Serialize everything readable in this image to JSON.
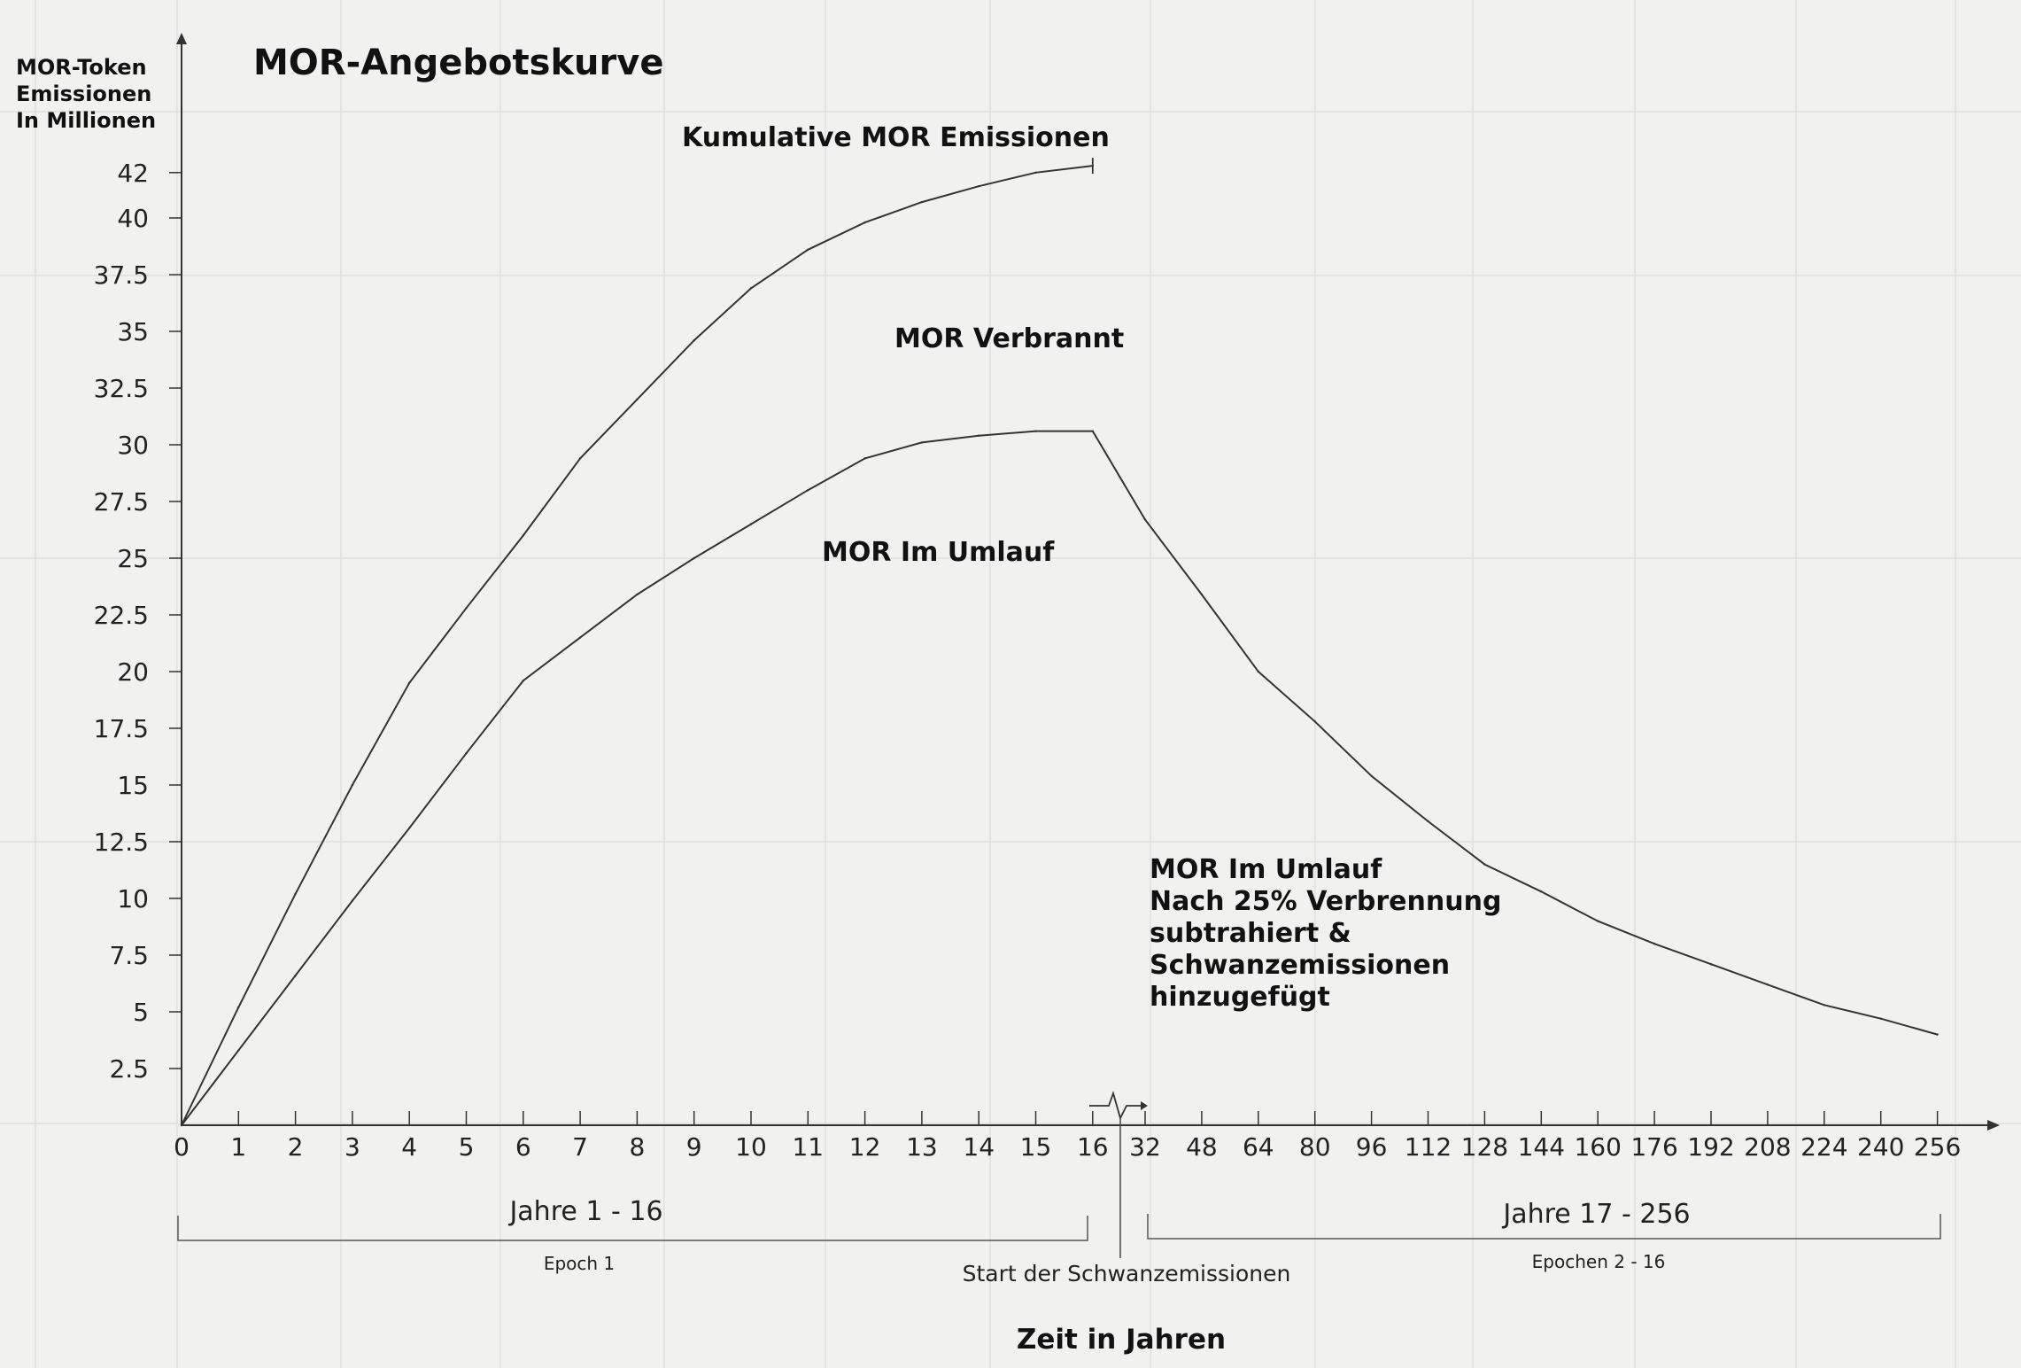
{
  "chart_data": {
    "type": "line",
    "title": "MOR-Angebotskurve",
    "ylabel_lines": [
      "MOR-Token",
      "Emissionen",
      "In Millionen"
    ],
    "xlabel": "Zeit in Jahren",
    "y_ticks": [
      "2.5",
      "5",
      "7.5",
      "10",
      "12.5",
      "15",
      "17.5",
      "20",
      "22.5",
      "25",
      "27.5",
      "30",
      "32.5",
      "35",
      "37.5",
      "40",
      "42"
    ],
    "x_ticks": [
      "0",
      "1",
      "2",
      "3",
      "4",
      "5",
      "6",
      "7",
      "8",
      "9",
      "10",
      "11",
      "12",
      "13",
      "14",
      "15",
      "16",
      "32",
      "48",
      "64",
      "80",
      "96",
      "112",
      "128",
      "144",
      "160",
      "176",
      "192",
      "208",
      "224",
      "240",
      "256"
    ],
    "ylim": [
      0,
      42.5
    ],
    "grid": true,
    "series": [
      {
        "name": "Kumulative MOR Emissionen",
        "points": [
          [
            0,
            0
          ],
          [
            1,
            5.2
          ],
          [
            2,
            10.2
          ],
          [
            3,
            15
          ],
          [
            4,
            19.5
          ],
          [
            5,
            22.8
          ],
          [
            6,
            26
          ],
          [
            7,
            29.4
          ],
          [
            8,
            32
          ],
          [
            9,
            34.6
          ],
          [
            10,
            36.9
          ],
          [
            11,
            38.6
          ],
          [
            12,
            39.8
          ],
          [
            13,
            40.7
          ],
          [
            14,
            41.4
          ],
          [
            15,
            42
          ],
          [
            16,
            42.3
          ]
        ]
      },
      {
        "name": "MOR Im Umlauf",
        "points": [
          [
            0,
            0
          ],
          [
            1,
            3.3
          ],
          [
            2,
            6.6
          ],
          [
            3,
            9.9
          ],
          [
            4,
            13.1
          ],
          [
            5,
            16.4
          ],
          [
            6,
            19.6
          ],
          [
            7,
            21.5
          ],
          [
            8,
            23.4
          ],
          [
            9,
            25
          ],
          [
            10,
            26.5
          ],
          [
            11,
            28
          ],
          [
            12,
            29.4
          ],
          [
            13,
            30.1
          ],
          [
            14,
            30.4
          ],
          [
            15,
            30.6
          ],
          [
            16,
            30.6
          ],
          [
            32,
            26.7
          ],
          [
            48,
            23.4
          ],
          [
            64,
            20
          ],
          [
            80,
            17.8
          ],
          [
            96,
            15.4
          ],
          [
            112,
            13.4
          ],
          [
            128,
            11.5
          ],
          [
            144,
            10.3
          ],
          [
            160,
            9
          ],
          [
            176,
            8
          ],
          [
            192,
            7.1
          ],
          [
            208,
            6.2
          ],
          [
            224,
            5.3
          ],
          [
            240,
            4.7
          ],
          [
            256,
            4
          ]
        ]
      }
    ],
    "annotations": {
      "cumulative": "Kumulative MOR Emissionen",
      "burned": "MOR Verbrannt",
      "circulating": "MOR Im Umlauf",
      "after_lines": [
        "MOR Im Umlauf",
        "Nach 25% Verbrennung",
        "subtrahiert &",
        "Schwanzemissionen",
        "hinzugefügt"
      ],
      "years_1_16": "Jahre 1 - 16",
      "epoch1": "Epoch 1",
      "years_17_256": "Jahre 17 - 256",
      "epochs_2_16": "Epochen 2 - 16",
      "tail_start": "Start der Schwanzemissionen"
    }
  }
}
